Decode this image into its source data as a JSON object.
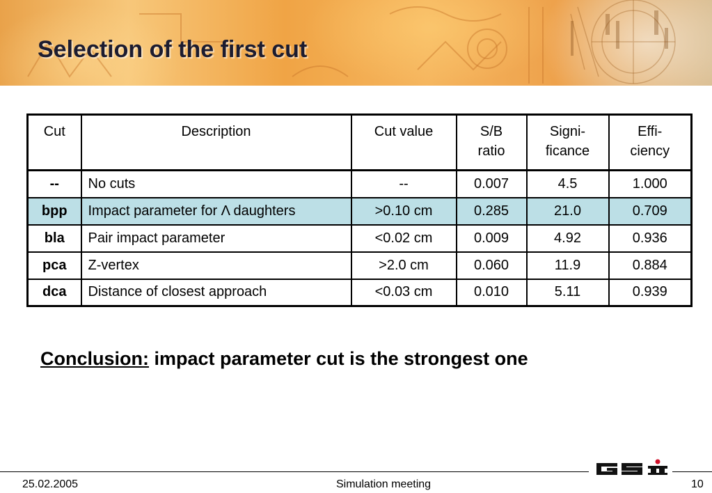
{
  "slide": {
    "title": "Selection of the first cut"
  },
  "table": {
    "headers": [
      {
        "line1": "Cut",
        "line2": ""
      },
      {
        "line1": "Description",
        "line2": ""
      },
      {
        "line1": "Cut value",
        "line2": ""
      },
      {
        "line1": "S/B",
        "line2": "ratio"
      },
      {
        "line1": "Signi-",
        "line2": "ficance"
      },
      {
        "line1": "Effi-",
        "line2": "ciency"
      }
    ],
    "rows": [
      {
        "cut": "--",
        "description": "No cuts",
        "value": "--",
        "sb": "0.007",
        "significance": "4.5",
        "efficiency": "1.000",
        "highlighted": false
      },
      {
        "cut": "bpp",
        "description": "Impact parameter for  Λ daughters",
        "value": ">0.10 cm",
        "sb": "0.285",
        "significance": "21.0",
        "efficiency": "0.709",
        "highlighted": true
      },
      {
        "cut": "bla",
        "description": "Pair impact parameter",
        "value": "<0.02 cm",
        "sb": "0.009",
        "significance": "4.92",
        "efficiency": "0.936",
        "highlighted": false
      },
      {
        "cut": "pca",
        "description": "Z-vertex",
        "value": ">2.0 cm",
        "sb": "0.060",
        "significance": "11.9",
        "efficiency": "0.884",
        "highlighted": false
      },
      {
        "cut": "dca",
        "description": "Distance of closest approach",
        "value": "<0.03 cm",
        "sb": "0.010",
        "significance": "5.11",
        "efficiency": "0.939",
        "highlighted": false
      }
    ],
    "highlight_color": "#bcdfe6"
  },
  "conclusion": {
    "label": "Conclusion:",
    "text": " impact parameter cut is the strongest one"
  },
  "footer": {
    "date": "25.02.2005",
    "event": "Simulation meeting",
    "page": "10",
    "logo_text": "GSI"
  },
  "colors": {
    "banner_orange": "#f0a445",
    "title_color": "#1c1c30"
  }
}
